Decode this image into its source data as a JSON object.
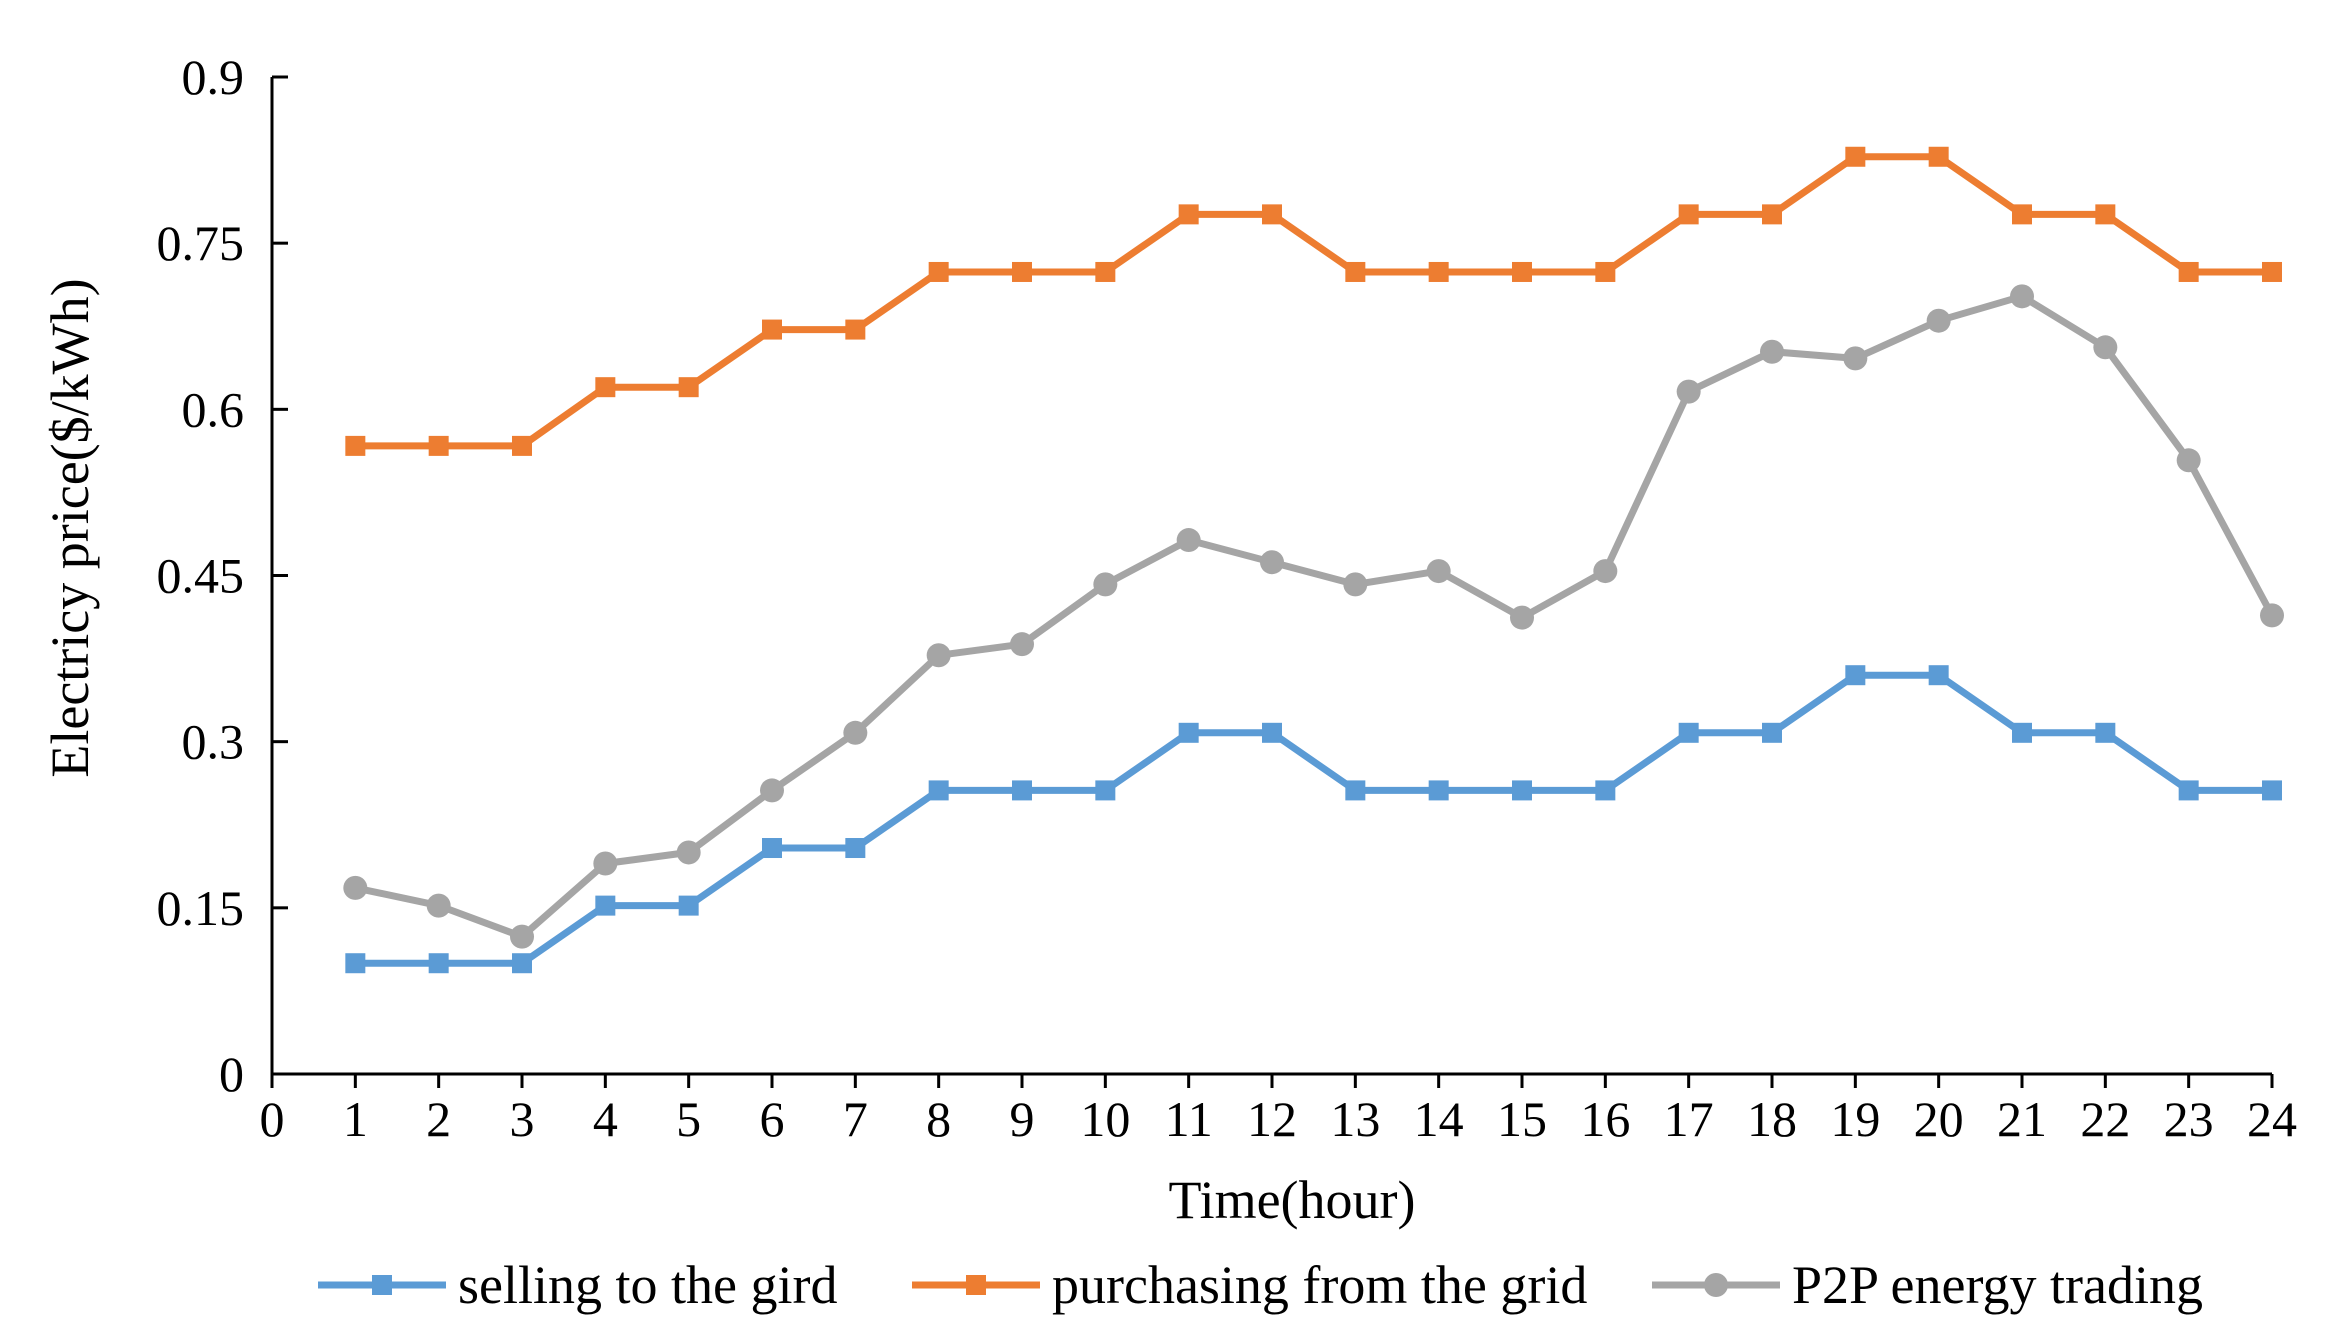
{
  "chart_data": {
    "type": "line",
    "title": "",
    "xlabel": "Time(hour)",
    "ylabel": "Electricy price($/kWh)",
    "xlim": [
      0,
      24
    ],
    "ylim": [
      0,
      0.9
    ],
    "xticks": [
      "0",
      "1",
      "2",
      "3",
      "4",
      "5",
      "6",
      "7",
      "8",
      "9",
      "10",
      "11",
      "12",
      "13",
      "14",
      "15",
      "16",
      "17",
      "18",
      "19",
      "20",
      "21",
      "22",
      "23",
      "24"
    ],
    "yticks": [
      "0",
      "0.15",
      "0.3",
      "0.45",
      "0.6",
      "0.75",
      "0.9"
    ],
    "ytick_values": [
      0,
      0.15,
      0.3,
      0.45,
      0.6,
      0.75,
      0.9
    ],
    "x": [
      1,
      2,
      3,
      4,
      5,
      6,
      7,
      8,
      9,
      10,
      11,
      12,
      13,
      14,
      15,
      16,
      17,
      18,
      19,
      20,
      21,
      22,
      23,
      24
    ],
    "grid": false,
    "legend_position": "bottom",
    "series": [
      {
        "name": "selling to the gird",
        "color": "#5B9BD5",
        "marker": "square",
        "values": [
          0.1,
          0.1,
          0.1,
          0.152,
          0.152,
          0.204,
          0.204,
          0.256,
          0.256,
          0.256,
          0.308,
          0.308,
          0.256,
          0.256,
          0.256,
          0.256,
          0.308,
          0.308,
          0.36,
          0.36,
          0.308,
          0.308,
          0.256,
          0.256
        ]
      },
      {
        "name": "purchasing from the grid",
        "color": "#ED7D31",
        "marker": "square",
        "values": [
          0.567,
          0.567,
          0.567,
          0.62,
          0.62,
          0.672,
          0.672,
          0.724,
          0.724,
          0.724,
          0.776,
          0.776,
          0.724,
          0.724,
          0.724,
          0.724,
          0.776,
          0.776,
          0.828,
          0.828,
          0.776,
          0.776,
          0.724,
          0.724
        ]
      },
      {
        "name": "P2P energy trading",
        "color": "#A5A5A5",
        "marker": "circle",
        "values": [
          0.168,
          0.152,
          0.124,
          0.19,
          0.2,
          0.256,
          0.308,
          0.378,
          0.388,
          0.442,
          0.482,
          0.462,
          0.442,
          0.454,
          0.412,
          0.454,
          0.616,
          0.652,
          0.646,
          0.68,
          0.702,
          0.656,
          0.554,
          0.414
        ]
      }
    ]
  }
}
